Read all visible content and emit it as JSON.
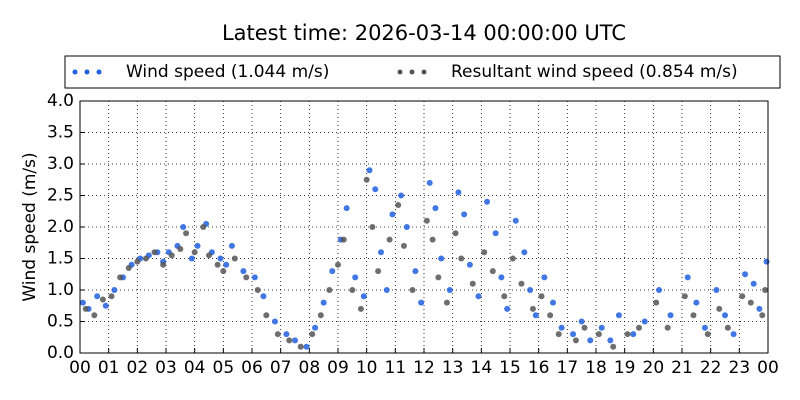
{
  "chart_data": {
    "type": "scatter",
    "title": "Latest time: 2026-03-14 00:00:00 UTC",
    "y_label": "Wind speed (m/s)",
    "xlim": [
      0,
      24
    ],
    "xticks": [
      {
        "value": 0,
        "label": "00"
      },
      {
        "value": 1,
        "label": "01"
      },
      {
        "value": 2,
        "label": "02"
      },
      {
        "value": 3,
        "label": "03"
      },
      {
        "value": 4,
        "label": "04"
      },
      {
        "value": 5,
        "label": "05"
      },
      {
        "value": 6,
        "label": "06"
      },
      {
        "value": 7,
        "label": "07"
      },
      {
        "value": 8,
        "label": "08"
      },
      {
        "value": 9,
        "label": "09"
      },
      {
        "value": 10,
        "label": "10"
      },
      {
        "value": 11,
        "label": "11"
      },
      {
        "value": 12,
        "label": "12"
      },
      {
        "value": 13,
        "label": "13"
      },
      {
        "value": 14,
        "label": "14"
      },
      {
        "value": 15,
        "label": "15"
      },
      {
        "value": 16,
        "label": "16"
      },
      {
        "value": 17,
        "label": "17"
      },
      {
        "value": 18,
        "label": "18"
      },
      {
        "value": 19,
        "label": "19"
      },
      {
        "value": 20,
        "label": "20"
      },
      {
        "value": 21,
        "label": "21"
      },
      {
        "value": 22,
        "label": "22"
      },
      {
        "value": 23,
        "label": "23"
      },
      {
        "value": 24,
        "label": "00"
      }
    ],
    "ylim": [
      0,
      4
    ],
    "yticks": [
      {
        "value": 0,
        "label": "0.0"
      },
      0.5,
      {
        "value": 1,
        "label": "1.0"
      },
      1.5,
      {
        "value": 2,
        "label": "2.0"
      },
      2.5,
      {
        "value": 3,
        "label": "3.0"
      },
      3.5,
      {
        "value": 4,
        "label": "4.0"
      }
    ],
    "grid": true,
    "series": [
      {
        "name": "Wind speed (1.044 m/s)",
        "color": "#1f5fe0",
        "x": [
          0.1,
          0.3,
          0.6,
          0.9,
          1.2,
          1.5,
          1.8,
          2.1,
          2.4,
          2.7,
          2.9,
          3.1,
          3.4,
          3.6,
          3.9,
          4.1,
          4.4,
          4.6,
          4.9,
          5.1,
          5.3,
          5.7,
          6.1,
          6.4,
          6.8,
          7.2,
          7.5,
          7.9,
          8.2,
          8.5,
          8.8,
          9.1,
          9.3,
          9.6,
          9.9,
          10.1,
          10.3,
          10.5,
          10.7,
          10.9,
          11.2,
          11.4,
          11.7,
          11.9,
          12.2,
          12.4,
          12.6,
          12.9,
          13.2,
          13.4,
          13.6,
          13.9,
          14.2,
          14.5,
          14.7,
          14.9,
          15.2,
          15.5,
          15.7,
          15.9,
          16.2,
          16.5,
          16.8,
          17.2,
          17.5,
          17.8,
          18.2,
          18.5,
          18.8,
          19.3,
          19.7,
          20.2,
          20.6,
          21.2,
          21.5,
          21.8,
          22.2,
          22.5,
          22.8,
          23.2,
          23.5,
          23.7,
          23.95
        ],
        "values": [
          0.8,
          0.7,
          0.9,
          0.75,
          1.0,
          1.2,
          1.4,
          1.5,
          1.55,
          1.6,
          1.45,
          1.6,
          1.7,
          2.0,
          1.5,
          1.7,
          2.05,
          1.6,
          1.5,
          1.4,
          1.7,
          1.3,
          1.2,
          0.9,
          0.5,
          0.3,
          0.2,
          0.1,
          0.4,
          0.8,
          1.3,
          1.8,
          2.3,
          1.2,
          0.9,
          2.9,
          2.6,
          1.6,
          1.0,
          2.2,
          2.5,
          2.0,
          1.3,
          0.8,
          2.7,
          2.3,
          1.5,
          1.0,
          2.55,
          2.2,
          1.4,
          0.9,
          2.4,
          1.9,
          1.2,
          0.7,
          2.1,
          1.6,
          1.0,
          0.6,
          1.2,
          0.8,
          0.4,
          0.3,
          0.5,
          0.2,
          0.4,
          0.2,
          0.6,
          0.3,
          0.5,
          1.0,
          0.6,
          1.2,
          0.8,
          0.4,
          1.0,
          0.6,
          0.3,
          1.25,
          1.1,
          0.7,
          1.45
        ]
      },
      {
        "name": "Resultant wind speed (0.854 m/s)",
        "color": "#555555",
        "x": [
          0.2,
          0.5,
          0.8,
          1.1,
          1.4,
          1.7,
          2.0,
          2.3,
          2.6,
          2.9,
          3.2,
          3.5,
          3.7,
          4.0,
          4.3,
          4.5,
          4.8,
          5.0,
          5.4,
          5.8,
          6.2,
          6.5,
          6.9,
          7.3,
          7.7,
          8.1,
          8.4,
          8.7,
          9.0,
          9.2,
          9.5,
          9.8,
          10.0,
          10.2,
          10.4,
          10.8,
          11.1,
          11.3,
          11.6,
          12.1,
          12.3,
          12.5,
          12.8,
          13.1,
          13.3,
          13.7,
          14.1,
          14.4,
          14.8,
          15.1,
          15.4,
          15.8,
          16.1,
          16.4,
          16.7,
          17.3,
          17.6,
          18.1,
          18.6,
          19.1,
          19.5,
          20.1,
          20.5,
          21.1,
          21.4,
          21.9,
          22.3,
          22.6,
          23.1,
          23.4,
          23.8,
          23.9
        ],
        "values": [
          0.7,
          0.6,
          0.85,
          0.9,
          1.2,
          1.35,
          1.45,
          1.5,
          1.6,
          1.4,
          1.55,
          1.65,
          1.9,
          1.6,
          2.0,
          1.55,
          1.4,
          1.3,
          1.5,
          1.2,
          1.0,
          0.6,
          0.3,
          0.2,
          0.1,
          0.3,
          0.6,
          1.0,
          1.4,
          1.8,
          1.0,
          0.7,
          2.75,
          2.0,
          1.3,
          1.8,
          2.35,
          1.7,
          1.0,
          2.1,
          1.8,
          1.2,
          0.8,
          1.9,
          1.5,
          1.1,
          1.6,
          1.3,
          0.9,
          1.5,
          1.1,
          0.7,
          0.9,
          0.6,
          0.3,
          0.2,
          0.4,
          0.3,
          0.1,
          0.3,
          0.4,
          0.8,
          0.4,
          0.9,
          0.6,
          0.3,
          0.7,
          0.4,
          0.9,
          0.8,
          0.6,
          1.0
        ]
      }
    ]
  }
}
